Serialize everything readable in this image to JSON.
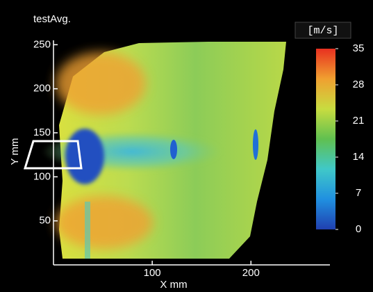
{
  "chart_data": {
    "type": "heatmap",
    "title": "testAvg.",
    "x_label": "X mm",
    "y_label": "Y mm",
    "xlim": [
      0,
      280
    ],
    "xticks": [
      100,
      200
    ],
    "ylim": [
      0,
      255
    ],
    "yticks": [
      50,
      100,
      150,
      200,
      250
    ],
    "colorbar": {
      "label": "[m/s]",
      "lim": [
        0,
        35
      ],
      "ticks": [
        0,
        7,
        14,
        21,
        28,
        35
      ],
      "colors": [
        "#2040b0",
        "#2090e0",
        "#40c8c8",
        "#60c050",
        "#c8dc40",
        "#f0a030",
        "#e83020"
      ]
    }
  }
}
